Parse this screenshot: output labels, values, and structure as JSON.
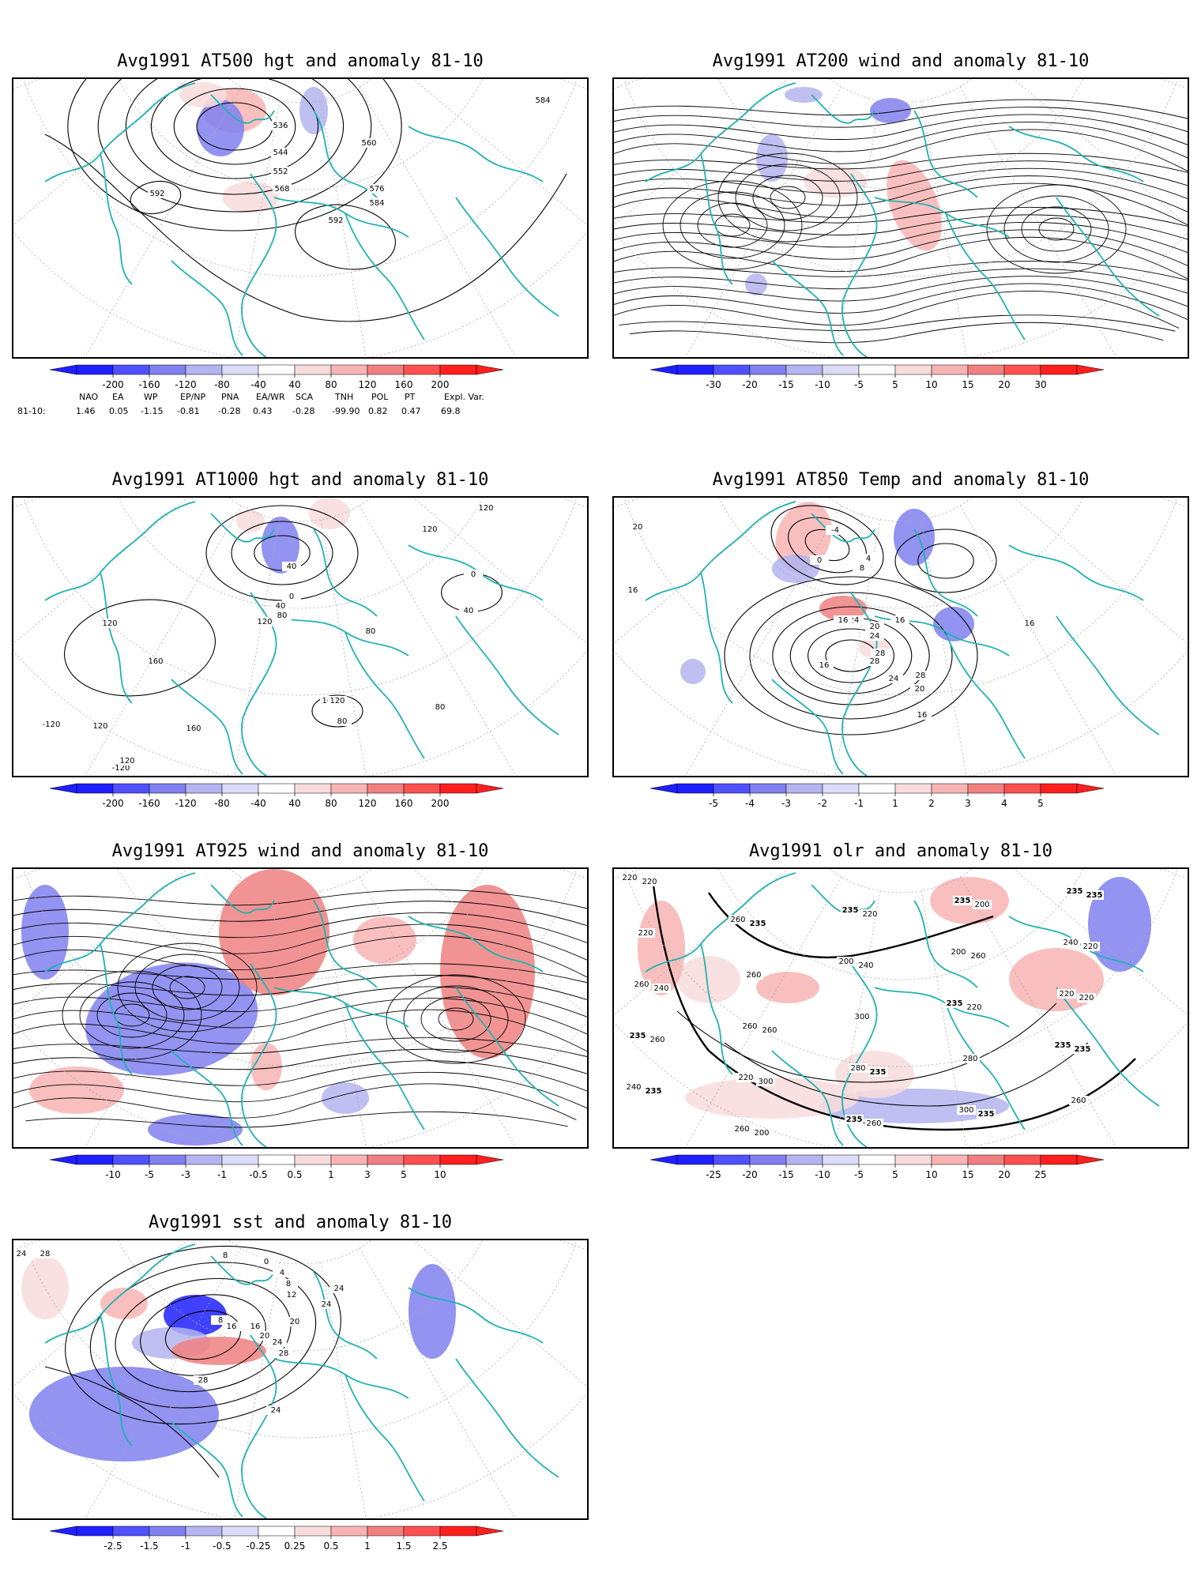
{
  "panels": [
    {
      "id": "p500",
      "title": "Avg1991 AT500 hgt and anomaly 81-10",
      "mode": "hgt500",
      "contour_labels": [
        "536",
        "544",
        "552",
        "560",
        "568",
        "576",
        "584",
        "584",
        "592",
        "592"
      ],
      "colorbar": [
        "-200",
        "-160",
        "-120",
        "-80",
        "-40",
        "40",
        "80",
        "120",
        "160",
        "200"
      ]
    },
    {
      "id": "p200",
      "title": "Avg1991 AT200 wind and anomaly 81-10",
      "mode": "wind",
      "contour_labels": [],
      "colorbar": [
        "-30",
        "-20",
        "-15",
        "-10",
        "-5",
        "5",
        "10",
        "15",
        "20",
        "30"
      ]
    },
    {
      "id": "p1000",
      "title": "Avg1991 AT1000 hgt and anomaly 81-10",
      "mode": "hgt1000",
      "contour_labels": [
        "40",
        "0",
        "40",
        "80",
        "120",
        "120",
        "160",
        "160",
        "160",
        "-120",
        "120",
        "0",
        "40",
        "80",
        "80",
        "120",
        "120",
        "120",
        "80",
        "-120",
        "120"
      ],
      "colorbar": [
        "-200",
        "-160",
        "-120",
        "-80",
        "-40",
        "40",
        "80",
        "120",
        "160",
        "200"
      ]
    },
    {
      "id": "p850",
      "title": "Avg1991 AT850 Temp and anomaly 81-10",
      "mode": "temp850",
      "contour_labels": [
        "20",
        "16",
        "-4",
        "0",
        "4",
        "8",
        "24",
        "28",
        "16",
        "16",
        "20",
        "24",
        "28",
        "28",
        "24",
        "20",
        "16",
        "16",
        "16"
      ],
      "colorbar": [
        "-5",
        "-4",
        "-3",
        "-2",
        "-1",
        "1",
        "2",
        "3",
        "4",
        "5"
      ]
    },
    {
      "id": "p925",
      "title": "Avg1991 AT925 wind and anomaly 81-10",
      "mode": "wind925",
      "contour_labels": [],
      "colorbar": [
        "-10",
        "-5",
        "-3",
        "-1",
        "-0.5",
        "0.5",
        "1",
        "3",
        "5",
        "10"
      ]
    },
    {
      "id": "polr",
      "title": "Avg1991 olr and anomaly 81-10",
      "mode": "olr",
      "contour_labels": [
        "220",
        "260",
        "200",
        "235",
        "235",
        "240",
        "260",
        "235",
        "200",
        "220",
        "235",
        "220",
        "235",
        "235",
        "240",
        "260",
        "260",
        "280",
        "300",
        "235",
        "220",
        "260",
        "300",
        "280",
        "260",
        "220",
        "235",
        "240",
        "220",
        "235",
        "235",
        "200",
        "220",
        "260",
        "220",
        "260",
        "300",
        "260",
        "200",
        "220",
        "240",
        "260",
        "235",
        "235",
        "235"
      ],
      "colorbar": [
        "-25",
        "-20",
        "-15",
        "-10",
        "-5",
        "5",
        "10",
        "15",
        "20",
        "25"
      ]
    },
    {
      "id": "psst",
      "title": "Avg1991 sst and anomaly 81-10",
      "mode": "sst",
      "contour_labels": [
        "24",
        "28",
        "8",
        "0",
        "4",
        "8",
        "12",
        "16",
        "20",
        "24",
        "28",
        "28",
        "24",
        "8",
        "16",
        "20",
        "24",
        "24"
      ],
      "colorbar": [
        "-2.5",
        "-1.5",
        "-1",
        "-0.5",
        "-0.25",
        "0.25",
        "0.5",
        "1",
        "1.5",
        "2.5"
      ]
    }
  ],
  "teleconnections": {
    "headers": [
      "NAO",
      "EA",
      "WP",
      "EP/NP",
      "PNA",
      "EA/WR",
      "SCA",
      "TNH",
      "POL",
      "PT",
      "Expl. Var."
    ],
    "row_label": "81-10:",
    "values": [
      "1.46",
      "0.05",
      "-1.15",
      "-0.81",
      "-0.28",
      "0.43",
      "-0.28",
      "-99.90",
      "0.82",
      "0.47",
      "69.8"
    ]
  },
  "colors": {
    "coast": "#20b2b2",
    "contour": "#000000",
    "grid": "#aaaaaa",
    "neg": [
      "#1f1fff",
      "#5050ff",
      "#8080f0",
      "#b4b4f0",
      "#dcdcf8"
    ],
    "pos": [
      "#f8dcdc",
      "#f8b4b4",
      "#f08080",
      "#ff5050",
      "#ff1f1f"
    ]
  }
}
